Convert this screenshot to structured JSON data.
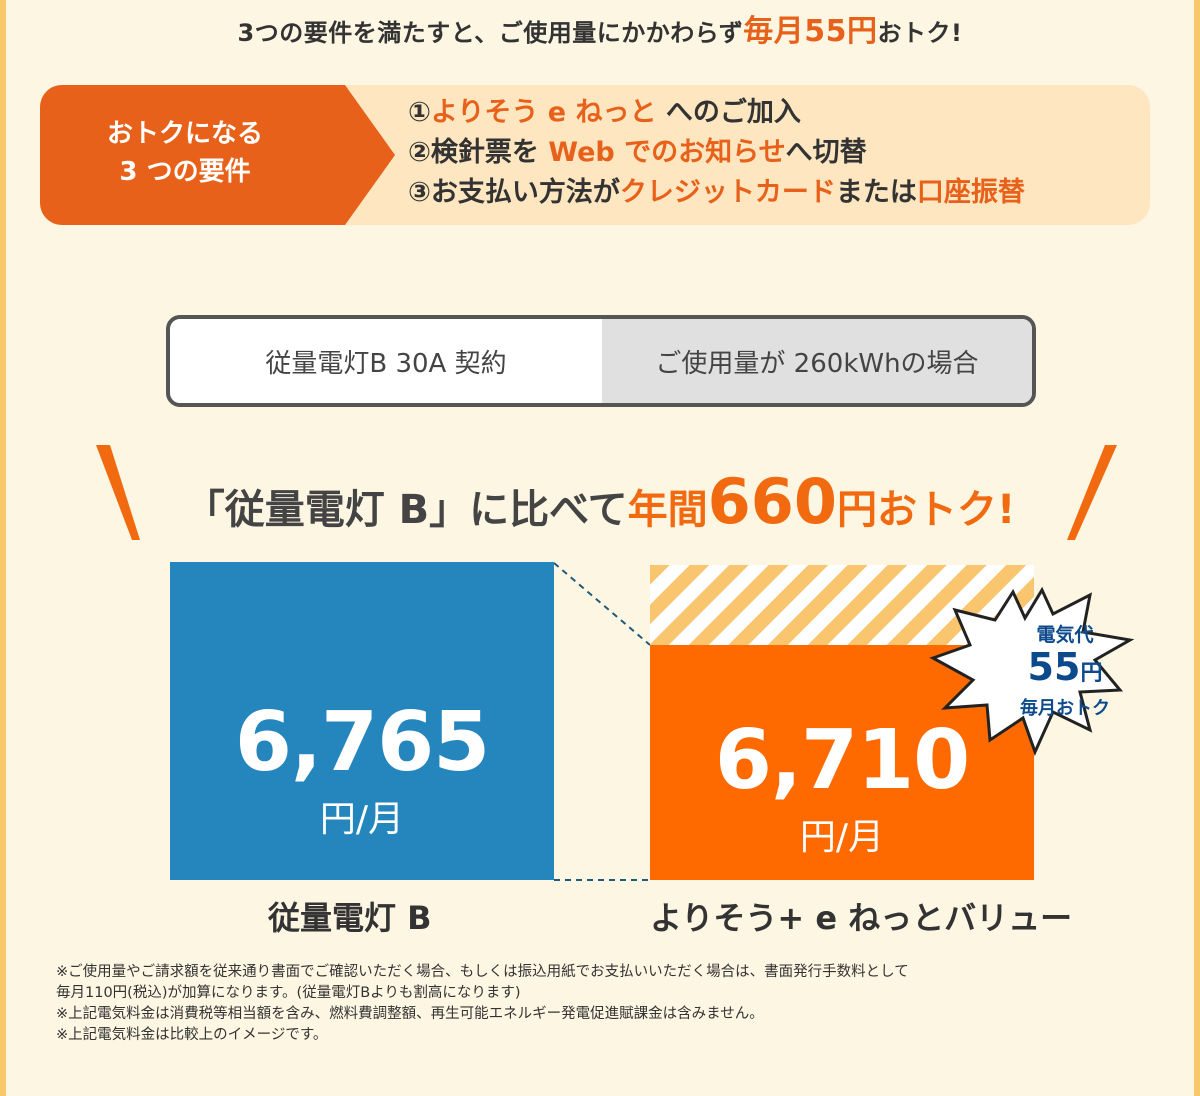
{
  "headline": {
    "prefix": "3つの要件を満たすと、ご使用量にかかわらず",
    "highlight": "毎月55円",
    "suffix": "おトク!"
  },
  "requirements": {
    "label_line1": "おトクになる",
    "label_line2": "3 つの要件",
    "items": [
      {
        "num": "①",
        "orange": "よりそう e ねっと",
        "rest": " へのご加入"
      },
      {
        "num": "②",
        "pre": "検針票を ",
        "orange": "Web でのお知らせ",
        "rest": "へ切替"
      },
      {
        "num": "③",
        "pre": "お支払い方法が",
        "orange": "クレジットカード",
        "mid": "または",
        "orange2": "口座振替"
      }
    ]
  },
  "condition": {
    "left": "従量電灯B 30A 契約",
    "right": "ご使用量が 260kWhの場合"
  },
  "comparison": {
    "prefix": "「従量電灯 B」に比べて",
    "year": "年間",
    "amount": "660",
    "suffix": "円おトク!"
  },
  "bars": {
    "left": {
      "value": "6,765",
      "unit": "円/月",
      "label": "従量電灯 B"
    },
    "right": {
      "value": "6,710",
      "unit": "円/月",
      "label": "よりそう+ e ねっとバリュー"
    }
  },
  "burst": {
    "line1": "電気代",
    "amount": "55",
    "yen": "円",
    "line3": "毎月おトク"
  },
  "notes": [
    "※ご使用量やご請求額を従来通り書面でご確認いただく場合、もしくは振込用紙でお支払いいただく場合は、書面発行手数料として",
    "毎月110円(税込)が加算になります。(従量電灯Bよりも割高になります)",
    "※上記電気料金は消費税等相当額を含み、燃料費調整額、再生可能エネルギー発電促進賦課金は含みません。",
    "※上記電気料金は比較上のイメージです。"
  ],
  "colors": {
    "orange": "#e8611a",
    "blue": "#2586be",
    "bar_orange": "#ff6a00",
    "stripe": "#f9c56e",
    "cream": "#fde6c0"
  }
}
